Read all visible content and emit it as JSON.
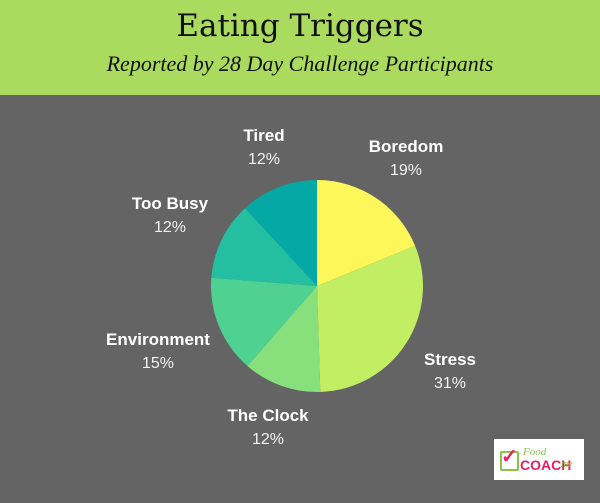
{
  "header": {
    "title": "Eating Triggers",
    "subtitle": "Reported by 28 Day Challenge Participants"
  },
  "chart_data": {
    "type": "pie",
    "title": "Eating Triggers",
    "subtitle": "Reported by 28 Day Challenge Participants",
    "categories": [
      "Boredom",
      "Stress",
      "The Clock",
      "Environment",
      "Too Busy",
      "Tired"
    ],
    "values": [
      19,
      31,
      12,
      15,
      12,
      12
    ],
    "value_labels": [
      "19%",
      "31%",
      "12%",
      "15%",
      "12%",
      "12%"
    ],
    "colors": [
      "#fdf759",
      "#c2ee63",
      "#88e07c",
      "#4fd191",
      "#24bfa0",
      "#04a9a6"
    ],
    "start_angle": "12 o'clock, clockwise",
    "legend": "none (outside slice labels)"
  },
  "labels": [
    {
      "name": "Boredom",
      "pct": "19%"
    },
    {
      "name": "Stress",
      "pct": "31%"
    },
    {
      "name": "The Clock",
      "pct": "12%"
    },
    {
      "name": "Environment",
      "pct": "15%"
    },
    {
      "name": "Too Busy",
      "pct": "12%"
    },
    {
      "name": "Tired",
      "pct": "12%"
    }
  ],
  "logo": {
    "food": "Food",
    "coach": "COACH",
    "me": "me"
  },
  "colors": {
    "header_bg": "#abdb5e",
    "page_bg": "#646464"
  }
}
